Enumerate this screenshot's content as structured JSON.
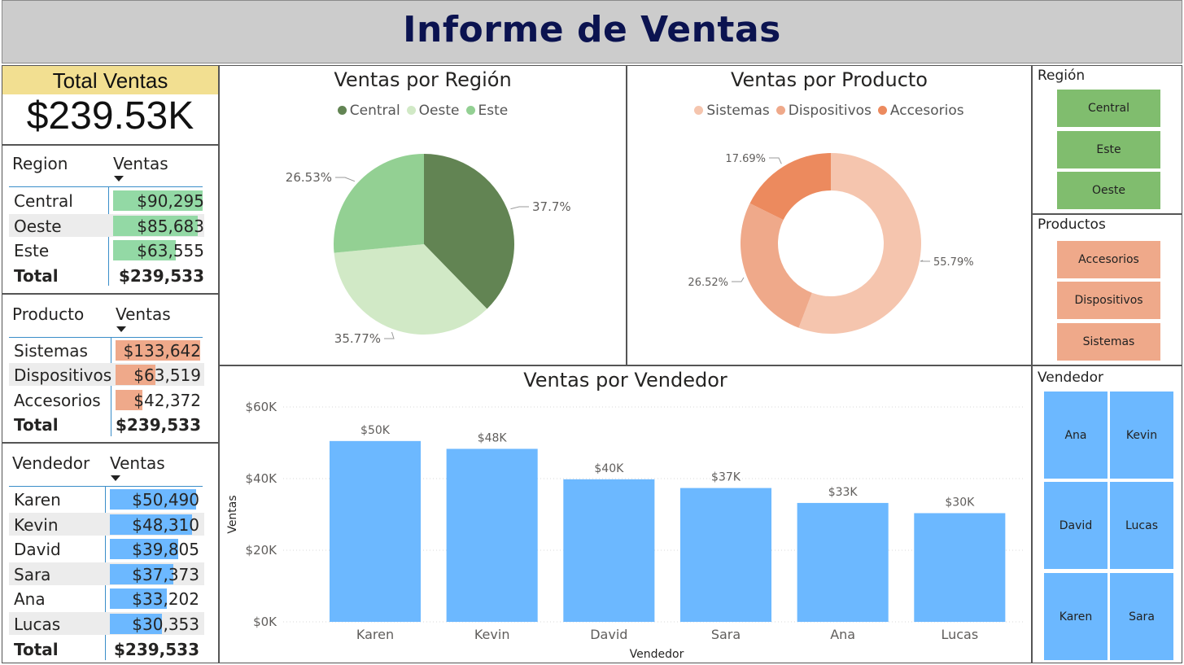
{
  "header": {
    "title": "Informe de Ventas"
  },
  "kpi": {
    "label": "Total Ventas",
    "value": "$239.53K"
  },
  "table_region": {
    "col1": "Region",
    "col2": "Ventas",
    "rows": [
      {
        "name": "Central",
        "value": "$90,295",
        "amount": 90295
      },
      {
        "name": "Oeste",
        "value": "$85,683",
        "amount": 85683
      },
      {
        "name": "Este",
        "value": "$63,555",
        "amount": 63555
      }
    ],
    "total_label": "Total",
    "total_value": "$239,533",
    "bar_color": "#93d9a5"
  },
  "table_producto": {
    "col1": "Producto",
    "col2": "Ventas",
    "rows": [
      {
        "name": "Sistemas",
        "value": "$133,642",
        "amount": 133642
      },
      {
        "name": "Dispositivos",
        "value": "$63,519",
        "amount": 63519
      },
      {
        "name": "Accesorios",
        "value": "$42,372",
        "amount": 42372
      }
    ],
    "total_label": "Total",
    "total_value": "$239,533",
    "bar_color": "#efa98a"
  },
  "table_vendedor": {
    "col1": "Vendedor",
    "col2": "Ventas",
    "rows": [
      {
        "name": "Karen",
        "value": "$50,490",
        "amount": 50490
      },
      {
        "name": "Kevin",
        "value": "$48,310",
        "amount": 48310
      },
      {
        "name": "David",
        "value": "$39,805",
        "amount": 39805
      },
      {
        "name": "Sara",
        "value": "$37,373",
        "amount": 37373
      },
      {
        "name": "Ana",
        "value": "$33,202",
        "amount": 33202
      },
      {
        "name": "Lucas",
        "value": "$30,353",
        "amount": 30353
      }
    ],
    "total_label": "Total",
    "total_value": "$239,533",
    "bar_color": "#6cb8ff"
  },
  "chart_data": [
    {
      "type": "pie",
      "title": "Ventas por Región",
      "categories": [
        "Central",
        "Oeste",
        "Este"
      ],
      "values": [
        37.7,
        35.77,
        26.53
      ],
      "labels": [
        "37.7%",
        "35.77%",
        "26.53%"
      ],
      "colors": [
        "#628453",
        "#d1e9c6",
        "#93d093"
      ],
      "legend": "top"
    },
    {
      "type": "pie",
      "donut": true,
      "title": "Ventas por Producto",
      "categories": [
        "Sistemas",
        "Dispositivos",
        "Accesorios"
      ],
      "values": [
        55.79,
        26.52,
        17.69
      ],
      "labels": [
        "55.79%",
        "26.52%",
        "17.69%"
      ],
      "colors": [
        "#f5c5ae",
        "#efa98a",
        "#ec8a5e"
      ],
      "legend": "top"
    },
    {
      "type": "bar",
      "title": "Ventas por Vendedor",
      "xlabel": "Vendedor",
      "ylabel": "Ventas",
      "categories": [
        "Karen",
        "Kevin",
        "David",
        "Sara",
        "Ana",
        "Lucas"
      ],
      "values": [
        50490,
        48310,
        39805,
        37373,
        33202,
        30353
      ],
      "data_labels": [
        "$50K",
        "$48K",
        "$40K",
        "$37K",
        "$33K",
        "$30K"
      ],
      "yticks": [
        0,
        20000,
        40000,
        60000
      ],
      "ytick_labels": [
        "$0K",
        "$20K",
        "$40K",
        "$60K"
      ],
      "ylim": [
        0,
        60000
      ],
      "grid": true,
      "color": "#6cb8ff"
    }
  ],
  "slicers": {
    "region": {
      "title": "Región",
      "items": [
        "Central",
        "Este",
        "Oeste"
      ],
      "color": "#80bd6e"
    },
    "productos": {
      "title": "Productos",
      "items": [
        "Accesorios",
        "Dispositivos",
        "Sistemas"
      ],
      "color": "#efa98a"
    },
    "vendedor": {
      "title": "Vendedor",
      "items": [
        "Ana",
        "Kevin",
        "David",
        "Lucas",
        "Karen",
        "Sara"
      ],
      "color": "#6cb8ff"
    }
  }
}
